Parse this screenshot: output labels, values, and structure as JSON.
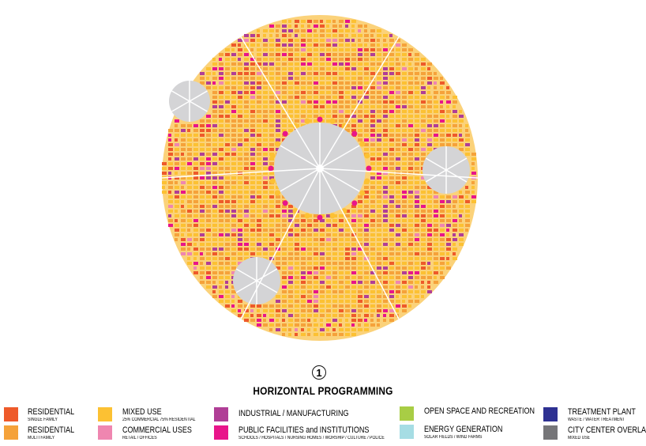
{
  "figure": {
    "number": "1",
    "title": "HORIZONTAL PROGRAMMING"
  },
  "legend": [
    {
      "label": "RESIDENTIAL",
      "sub": "SINGLE FAMILY",
      "color": "#ee5a2a"
    },
    {
      "label": "RESIDENTIAL",
      "sub": "MULTI FAMILY",
      "color": "#f5a23a"
    },
    {
      "label": "MIXED USE",
      "sub": "25% COMMERCIAL 75% RESIDENTIAL",
      "color": "#fcc133"
    },
    {
      "label": "COMMERCIAL USES",
      "sub": "RETAIL / OFFICES",
      "color": "#ef86b0"
    },
    {
      "label": "INDUSTRIAL / MANUFACTURING",
      "sub": "",
      "color": "#b03e96"
    },
    {
      "label": "PUBLIC FACILITIES and INSTITUTIONS",
      "sub": "SCHOOLS / HOSPITALS / NURSING HOMES / WORSHIP / CULTURE / POLICE",
      "color": "#e8158a"
    },
    {
      "label": "OPEN SPACE AND RECREATION",
      "sub": "",
      "color": "#a8cd45"
    },
    {
      "label": "ENERGY GENERATION",
      "sub": "SOLAR FIELDS / WIND FARMS",
      "color": "#a6dde4"
    },
    {
      "label": "TREATMENT PLANT",
      "sub": "WASTE / WATER TREATMENT",
      "color": "#2e3192"
    },
    {
      "label": "CITY CENTER OVERLAP",
      "sub": "MIXED USE",
      "color": "#767679"
    }
  ]
}
